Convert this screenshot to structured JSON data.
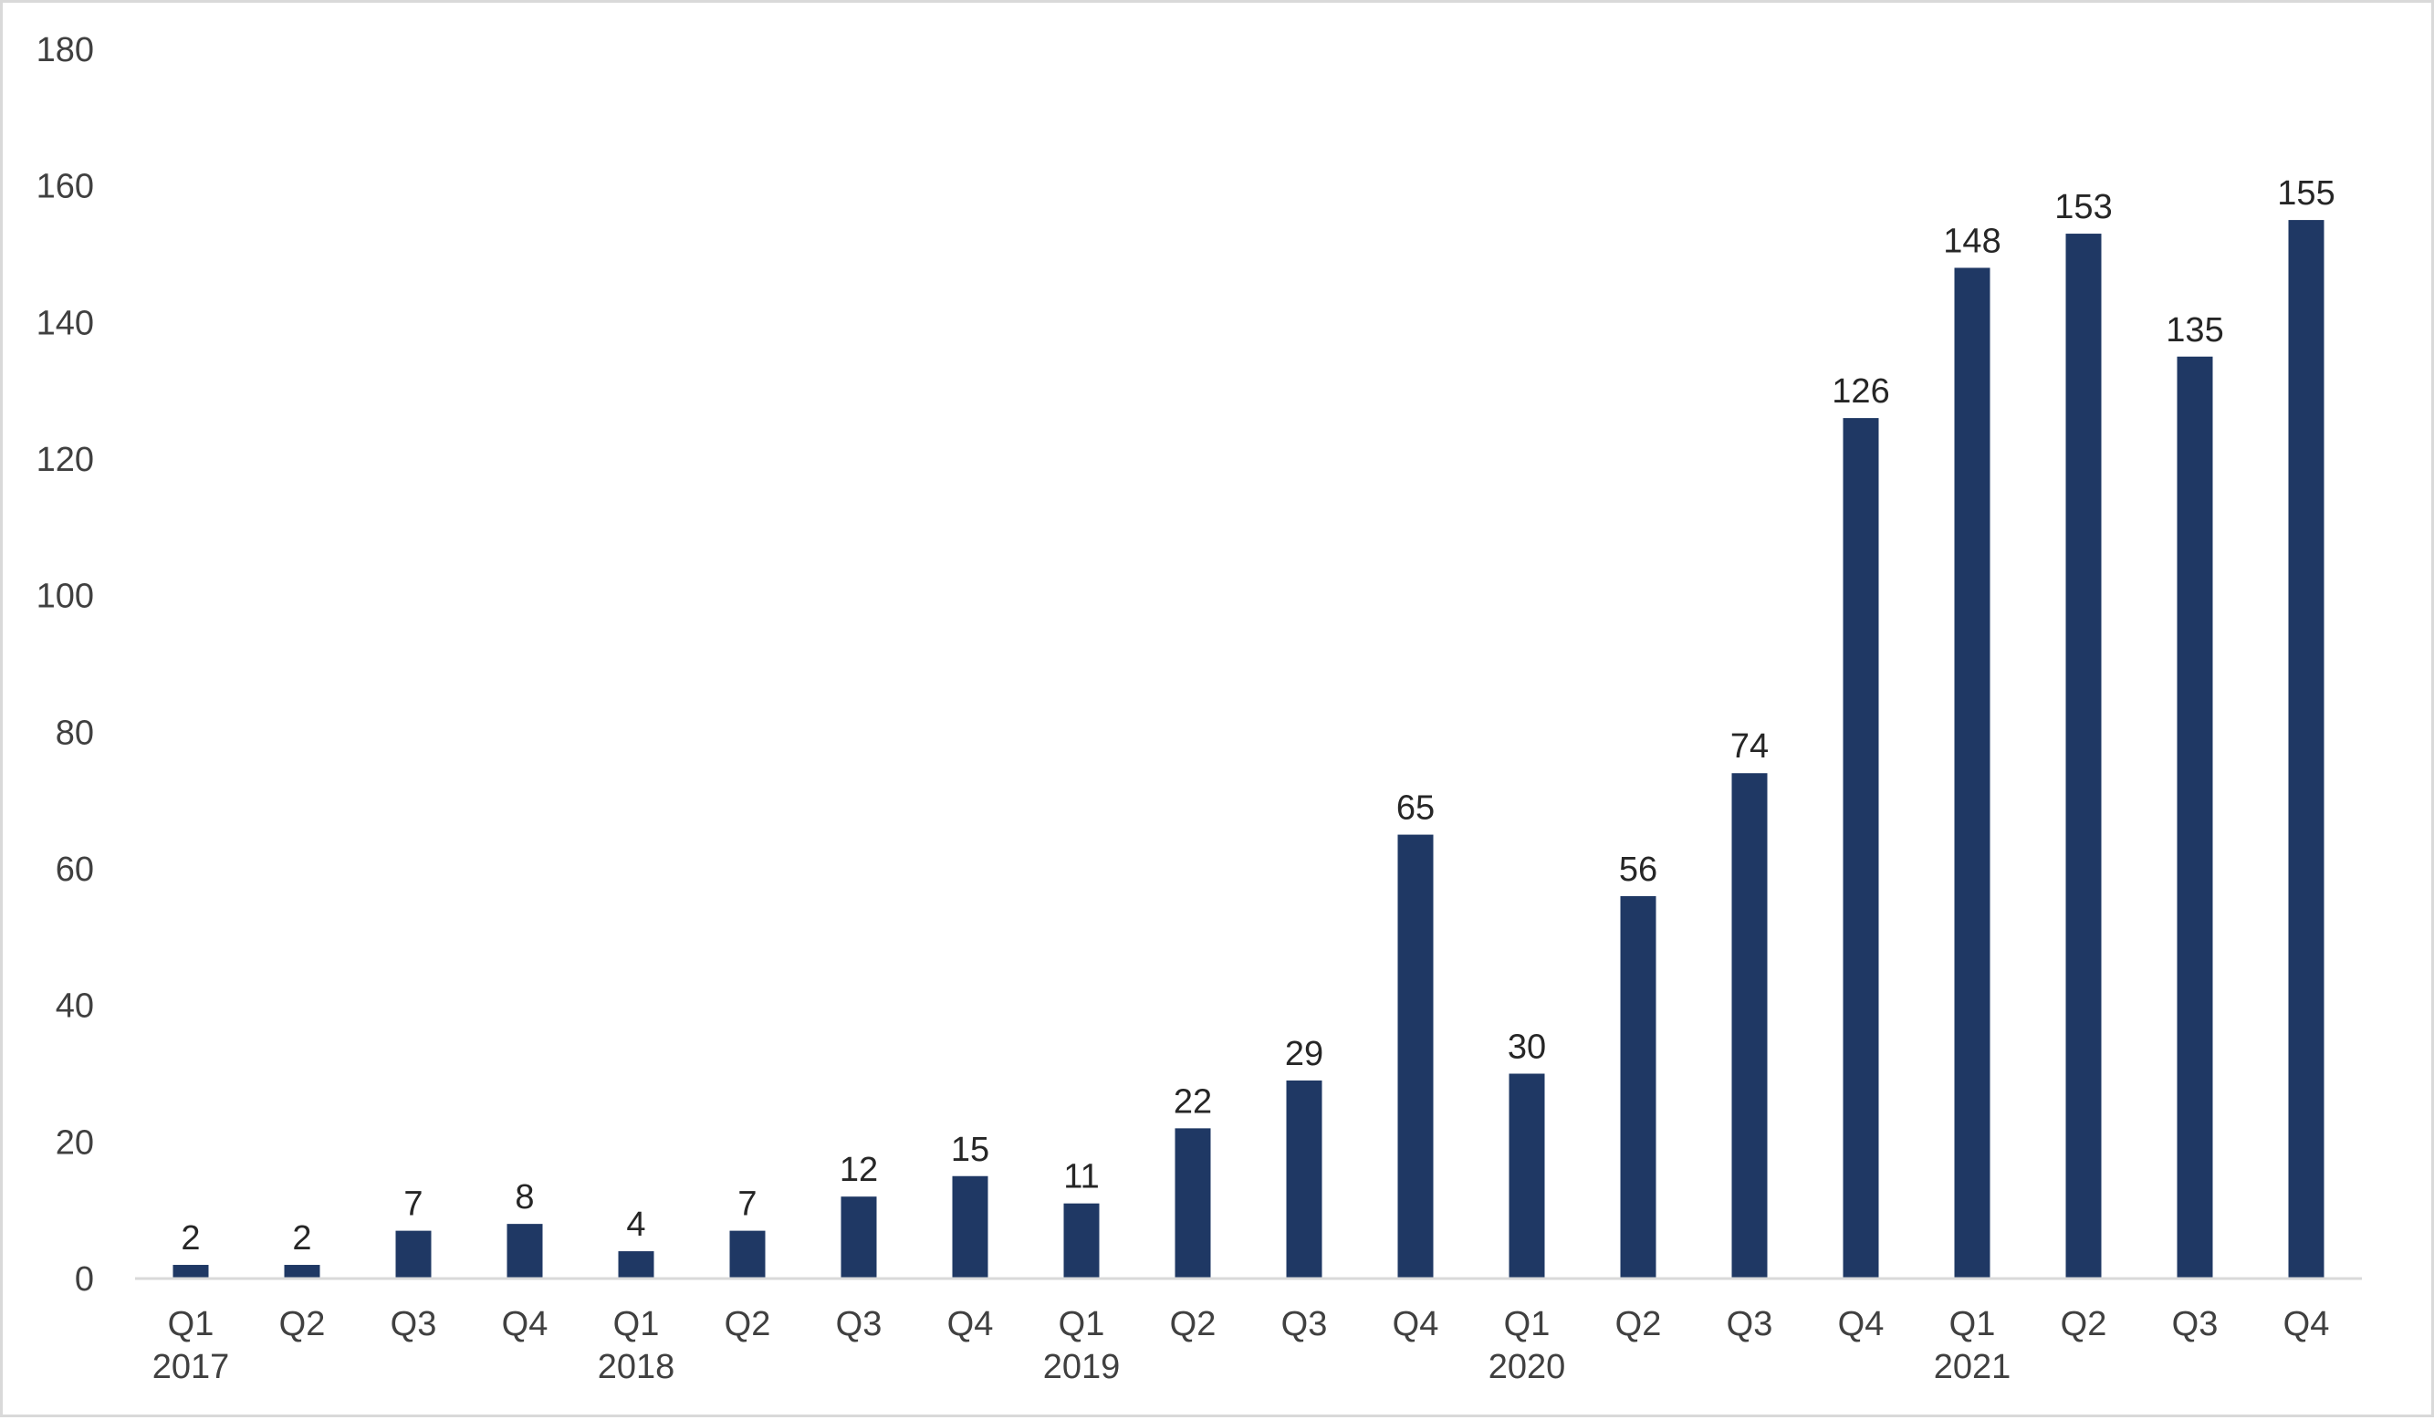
{
  "chart_data": {
    "type": "bar",
    "title": "",
    "xlabel": "",
    "ylabel": "",
    "ylim": [
      0,
      180
    ],
    "yticks": [
      0,
      20,
      40,
      60,
      80,
      100,
      120,
      140,
      160,
      180
    ],
    "categories": [
      "Q1",
      "Q2",
      "Q3",
      "Q4",
      "Q1",
      "Q2",
      "Q3",
      "Q4",
      "Q1",
      "Q2",
      "Q3",
      "Q4",
      "Q1",
      "Q2",
      "Q3",
      "Q4",
      "Q1",
      "Q2",
      "Q3",
      "Q4"
    ],
    "year_groups": [
      {
        "label": "2017",
        "first_index": 0
      },
      {
        "label": "2018",
        "first_index": 4
      },
      {
        "label": "2019",
        "first_index": 8
      },
      {
        "label": "2020",
        "first_index": 12
      },
      {
        "label": "2021",
        "first_index": 16
      }
    ],
    "values": [
      2,
      2,
      7,
      8,
      4,
      7,
      12,
      15,
      11,
      22,
      29,
      65,
      30,
      56,
      74,
      126,
      148,
      153,
      135,
      155
    ],
    "data_labels": true,
    "grid": false,
    "legend": "none",
    "colors": {
      "bar": "#1f3864",
      "axis": "#d9d9d9",
      "text": "#404040"
    }
  }
}
